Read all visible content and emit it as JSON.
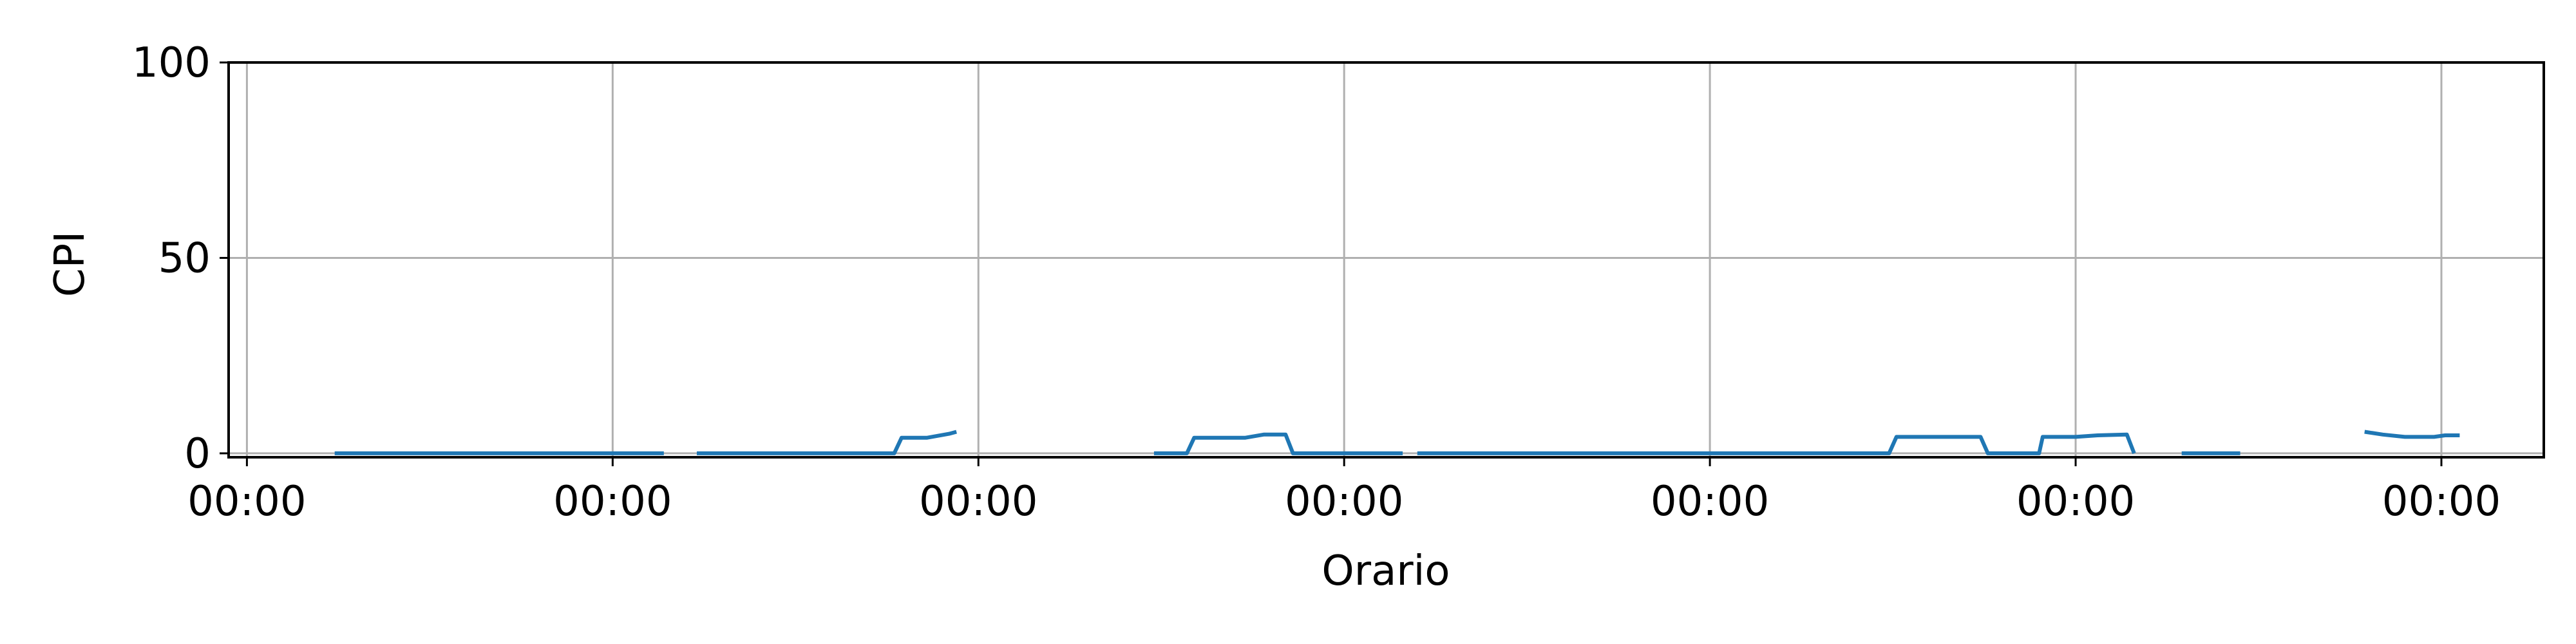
{
  "chart_data": {
    "type": "line",
    "xlabel": "Orario",
    "ylabel": "CPI",
    "ylim": [
      -1,
      100
    ],
    "xlim": [
      -0.05,
      6.28
    ],
    "grid": true,
    "y_ticks": [
      {
        "value": 0,
        "label": "0"
      },
      {
        "value": 50,
        "label": "50"
      },
      {
        "value": 100,
        "label": "100"
      }
    ],
    "x_ticks": [
      {
        "value": 0,
        "label": "00:00"
      },
      {
        "value": 1,
        "label": "00:00"
      },
      {
        "value": 2,
        "label": "00:00"
      },
      {
        "value": 3,
        "label": "00:00"
      },
      {
        "value": 4,
        "label": "00:00"
      },
      {
        "value": 5,
        "label": "00:00"
      },
      {
        "value": 6,
        "label": "00:00"
      }
    ],
    "series": [
      {
        "color": "#1f77b4",
        "segments": [
          [
            [
              0.24,
              0
            ],
            [
              1.14,
              0
            ]
          ],
          [
            [
              1.23,
              0
            ],
            [
              1.77,
              0
            ],
            [
              1.79,
              4
            ],
            [
              1.86,
              4
            ],
            [
              1.92,
              5
            ],
            [
              1.94,
              5.5
            ]
          ],
          [
            [
              2.48,
              0
            ],
            [
              2.57,
              0
            ],
            [
              2.59,
              4
            ],
            [
              2.73,
              4
            ],
            [
              2.78,
              4.8
            ],
            [
              2.84,
              4.8
            ],
            [
              2.86,
              0
            ],
            [
              3.16,
              0
            ]
          ],
          [
            [
              3.2,
              0
            ],
            [
              4.49,
              0
            ],
            [
              4.51,
              4.2
            ],
            [
              4.74,
              4.2
            ],
            [
              4.76,
              0
            ],
            [
              4.9,
              0
            ],
            [
              4.91,
              4.2
            ],
            [
              5.0,
              4.2
            ],
            [
              5.06,
              4.6
            ],
            [
              5.14,
              4.8
            ],
            [
              5.16,
              0
            ]
          ],
          [
            [
              5.29,
              0
            ],
            [
              5.45,
              0
            ]
          ],
          [
            [
              5.79,
              5.5
            ],
            [
              5.84,
              4.8
            ],
            [
              5.9,
              4.2
            ],
            [
              5.98,
              4.2
            ],
            [
              6.01,
              4.6
            ],
            [
              6.05,
              4.6
            ]
          ]
        ]
      }
    ]
  }
}
